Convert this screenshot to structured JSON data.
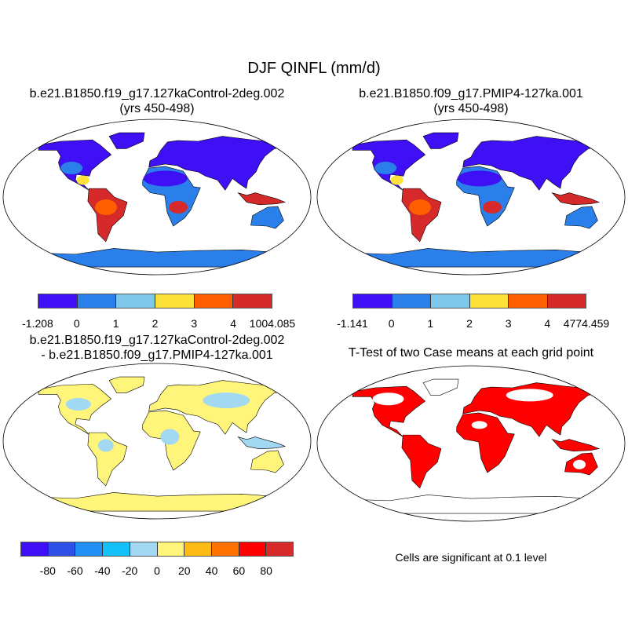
{
  "title": "DJF QINFL (mm/d)",
  "panels": [
    {
      "title_line1": "b.e21.B1850.f19_g17.127kaControl-2deg.002",
      "title_line2": "(yrs 450-498)"
    },
    {
      "title_line1": "b.e21.B1850.f09_g17.PMIP4-127ka.001",
      "title_line2": "(yrs 450-498)"
    },
    {
      "title_line1": "b.e21.B1850.f19_g17.127kaControl-2deg.002",
      "title_line2": "- b.e21.B1850.f09_g17.PMIP4-127ka.001"
    },
    {
      "title_line1": "T-Test of two Case means at each grid point",
      "title_line2": ""
    }
  ],
  "colorbars": [
    {
      "colors": [
        "#3f0ff5",
        "#2a7fea",
        "#7ec8ec",
        "#fde23a",
        "#fd5e00",
        "#d62a2a"
      ],
      "labels": [
        "-1.208",
        "0",
        "1",
        "2",
        "3",
        "4",
        "1004.085"
      ]
    },
    {
      "colors": [
        "#3f0ff5",
        "#2a7fea",
        "#7ec8ec",
        "#fde23a",
        "#fd5e00",
        "#d62a2a"
      ],
      "labels": [
        "-1.141",
        "0",
        "1",
        "2",
        "3",
        "4",
        "4774.459"
      ]
    },
    {
      "colors": [
        "#3f0ff5",
        "#2f50e6",
        "#2290f5",
        "#13c0f8",
        "#a3d8f2",
        "#fff57a",
        "#ffbb15",
        "#ff7200",
        "#ff0000",
        "#d72b2b"
      ],
      "labels": [
        "-80",
        "-60",
        "-40",
        "-20",
        "0",
        "20",
        "40",
        "60",
        "80"
      ]
    }
  ],
  "significance_note": "Cells are significant at 0.1 level",
  "significance_color": "#ff0000"
}
